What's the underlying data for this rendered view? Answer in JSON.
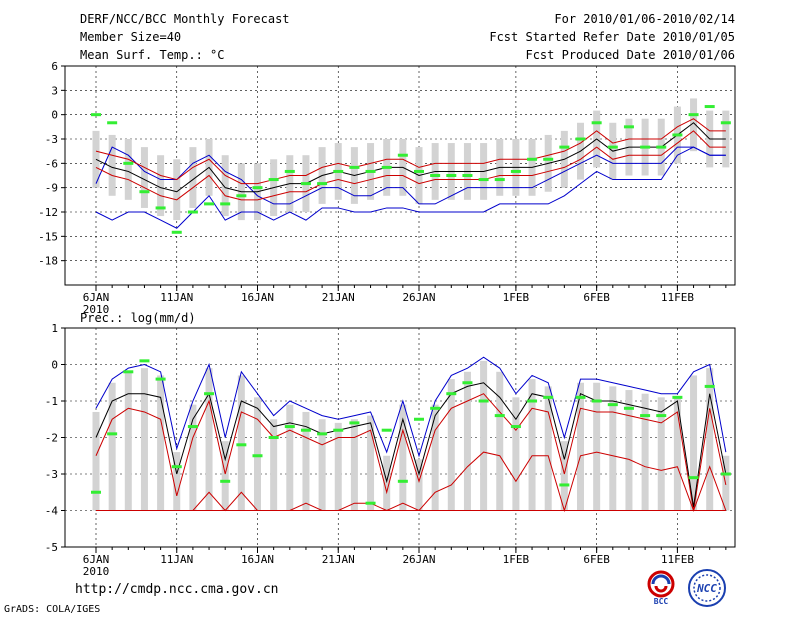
{
  "header": {
    "title": "DERF/NCC/BCC Monthly Forecast",
    "member_size": "Member Size=40",
    "variable": "Mean Surf. Temp.: °C",
    "period": "For 2010/01/06-2010/02/14",
    "refer_date": "Fcst Started Refer Date 2010/01/05",
    "produced_date": "Fcst Produced Date 2010/01/06"
  },
  "footer": {
    "url": "http://cmdp.ncc.cma.gov.cn",
    "credit": "GrADS: COLA/IGES",
    "logo_bcc": "BCC",
    "logo_ncc": "NCC"
  },
  "colors": {
    "median": "#000000",
    "quartile": "#cc0000",
    "extreme": "#0000cc",
    "box": "#d3d3d3",
    "obs_marker": "#33ee33"
  },
  "chart_data": [
    {
      "type": "box",
      "title": "",
      "ylabel": "Mean Surf. Temp.: °C",
      "ylim": [
        -21,
        6
      ],
      "yticks": [
        6,
        3,
        0,
        -3,
        -6,
        -9,
        -12,
        -15,
        -18
      ],
      "x_day_index_range": [
        0,
        39
      ],
      "xticks": [
        {
          "day": 0,
          "label": "6JAN",
          "sublabel": "2010"
        },
        {
          "day": 5,
          "label": "11JAN"
        },
        {
          "day": 10,
          "label": "16JAN"
        },
        {
          "day": 15,
          "label": "21JAN"
        },
        {
          "day": 20,
          "label": "26JAN"
        },
        {
          "day": 26,
          "label": "1FEB"
        },
        {
          "day": 31,
          "label": "6FEB"
        },
        {
          "day": 36,
          "label": "11FEB"
        }
      ],
      "series": [
        {
          "name": "max",
          "values": [
            -8.5,
            -4,
            -5,
            -7,
            -8,
            -8,
            -6,
            -5,
            -7,
            -8,
            -10,
            -11,
            -11,
            -10,
            -9,
            -9,
            -10,
            -10,
            -9,
            -9,
            -11,
            -11,
            -10,
            -9,
            -9,
            -9,
            -9,
            -9,
            -8,
            -7,
            -6,
            -5,
            -6,
            -6,
            -6,
            -6,
            -4,
            -4,
            -5,
            -5
          ]
        },
        {
          "name": "q75",
          "values": [
            -4.5,
            -5,
            -5.5,
            -6.5,
            -7.5,
            -8,
            -6.5,
            -5.5,
            -7.5,
            -8.5,
            -8.5,
            -8,
            -7.5,
            -7.5,
            -6.5,
            -6,
            -6.5,
            -6,
            -5.5,
            -5.5,
            -6.5,
            -6,
            -6,
            -6,
            -6,
            -5.5,
            -5.5,
            -5.5,
            -5,
            -4.5,
            -3.5,
            -2,
            -3.5,
            -3,
            -3,
            -3,
            -1.5,
            -0.5,
            -2,
            -2
          ]
        },
        {
          "name": "median",
          "values": [
            -5.5,
            -6.5,
            -7,
            -8,
            -9,
            -9.5,
            -8,
            -6.5,
            -9,
            -9.5,
            -9.5,
            -9,
            -8.5,
            -8.5,
            -7.5,
            -7,
            -7.5,
            -7,
            -6.5,
            -6.5,
            -7.5,
            -7,
            -7,
            -7,
            -7,
            -6.5,
            -6.5,
            -6.5,
            -6,
            -5.5,
            -4.5,
            -3,
            -4.5,
            -4,
            -4,
            -4,
            -2.5,
            -1,
            -3,
            -3
          ]
        },
        {
          "name": "q25",
          "values": [
            -6.5,
            -7.5,
            -8,
            -9,
            -10,
            -10.5,
            -9,
            -7.5,
            -10,
            -10.5,
            -10.5,
            -10,
            -9.5,
            -9.5,
            -8.5,
            -8,
            -8.5,
            -8,
            -7.5,
            -7.5,
            -8.5,
            -8,
            -8,
            -8,
            -8,
            -7.5,
            -7.5,
            -7.5,
            -7,
            -6.5,
            -5.5,
            -4,
            -5.5,
            -5,
            -5,
            -5,
            -3.5,
            -2,
            -4,
            -4
          ]
        },
        {
          "name": "min",
          "values": [
            -12,
            -13,
            -12,
            -12,
            -13,
            -14,
            -12,
            -10,
            -13,
            -12,
            -12,
            -13,
            -12,
            -13,
            -11.5,
            -11.5,
            -12,
            -12,
            -11.5,
            -11.5,
            -12,
            -12,
            -12,
            -12,
            -12,
            -11,
            -11,
            -11,
            -11,
            -10,
            -8.5,
            -7,
            -8,
            -8,
            -8,
            -8,
            -5,
            -4,
            -5,
            -5
          ]
        },
        {
          "name": "observed",
          "values": [
            0,
            -1,
            -6,
            -9.5,
            -11.5,
            -14.5,
            -12,
            -11,
            -11,
            -10,
            -9,
            -8,
            -7,
            -8.5,
            -8.5,
            -7,
            -6.5,
            -7,
            -6.5,
            -5,
            -7,
            -7.5,
            -7.5,
            -7.5,
            -8,
            -8,
            -7,
            -5.5,
            -5.5,
            -4,
            -3,
            -1,
            -4,
            -1.5,
            -4,
            -4,
            -2.5,
            0,
            1,
            -1
          ]
        }
      ]
    },
    {
      "type": "box",
      "title": "Prec.: log(mm/d)",
      "ylabel": "log(mm/d)",
      "ylim": [
        -5,
        1
      ],
      "yticks": [
        1,
        0,
        -1,
        -2,
        -3,
        -4,
        -5
      ],
      "xticks": [
        {
          "day": 0,
          "label": "6JAN",
          "sublabel": "2010"
        },
        {
          "day": 5,
          "label": "11JAN"
        },
        {
          "day": 10,
          "label": "16JAN"
        },
        {
          "day": 15,
          "label": "21JAN"
        },
        {
          "day": 20,
          "label": "26JAN"
        },
        {
          "day": 26,
          "label": "1FEB"
        },
        {
          "day": 31,
          "label": "6FEB"
        },
        {
          "day": 36,
          "label": "11FEB"
        }
      ],
      "series": [
        {
          "name": "max",
          "values": [
            -1.2,
            -0.4,
            -0.1,
            0,
            -0.2,
            -2.3,
            -1,
            0,
            -2,
            -0.2,
            -0.8,
            -1.4,
            -1,
            -1.2,
            -1.4,
            -1.5,
            -1.4,
            -1.3,
            -2.4,
            -1,
            -2.5,
            -1,
            -0.3,
            -0.1,
            0.2,
            -0.1,
            -0.8,
            -0.3,
            -0.5,
            -2,
            -0.4,
            -0.4,
            -0.5,
            -0.6,
            -0.7,
            -0.8,
            -0.8,
            -0.2,
            0,
            -2.4
          ]
        },
        {
          "name": "median",
          "values": [
            -2,
            -1,
            -0.8,
            -0.8,
            -0.9,
            -3,
            -1.5,
            -0.8,
            -2.6,
            -1,
            -1.2,
            -1.7,
            -1.6,
            -1.7,
            -1.9,
            -1.8,
            -1.7,
            -1.6,
            -3.2,
            -1.5,
            -3,
            -1.4,
            -0.8,
            -0.6,
            -0.5,
            -0.9,
            -1.5,
            -0.8,
            -0.9,
            -2.6,
            -0.8,
            -1,
            -1,
            -1.1,
            -1.2,
            -1.3,
            -1,
            -3.9,
            -0.8,
            -3
          ]
        },
        {
          "name": "q25",
          "values": [
            -2.5,
            -1.5,
            -1.2,
            -1.3,
            -1.5,
            -3.6,
            -2,
            -1,
            -3,
            -1.3,
            -1.5,
            -2,
            -1.8,
            -2,
            -2.2,
            -2,
            -2,
            -1.8,
            -3.5,
            -1.8,
            -3.2,
            -1.8,
            -1.2,
            -1,
            -0.8,
            -1.3,
            -1.8,
            -1.2,
            -1.3,
            -3,
            -1.2,
            -1.3,
            -1.3,
            -1.4,
            -1.5,
            -1.6,
            -1.3,
            -4,
            -1.2,
            -3.3
          ]
        },
        {
          "name": "q10",
          "values": [
            -4,
            -4,
            -4,
            -4,
            -4,
            -4,
            -4,
            -3.5,
            -4,
            -3.5,
            -4,
            -4,
            -4,
            -3.8,
            -4,
            -4,
            -3.8,
            -3.8,
            -4,
            -3.8,
            -4,
            -3.5,
            -3.3,
            -2.8,
            -2.4,
            -2.5,
            -3.2,
            -2.5,
            -2.5,
            -4,
            -2.5,
            -2.4,
            -2.5,
            -2.6,
            -2.8,
            -2.9,
            -2.8,
            -4,
            -2.8,
            -4
          ]
        },
        {
          "name": "min",
          "values": [
            -4,
            -4,
            -4,
            -4,
            -4,
            -4,
            -4,
            -4,
            -4,
            -4,
            -4,
            -4,
            -4,
            -4,
            -4,
            -4,
            -4,
            -4,
            -4,
            -4,
            -4,
            -4,
            -4,
            -4,
            -4,
            -4,
            -4,
            -4,
            -4,
            -4,
            -4,
            -4,
            -4,
            -4,
            -4,
            -4,
            -4,
            -4,
            -4,
            -4
          ]
        },
        {
          "name": "observed",
          "values": [
            -3.5,
            -1.9,
            -0.2,
            0.1,
            -0.4,
            -2.8,
            -1.7,
            -0.8,
            -3.2,
            -2.2,
            -2.5,
            -2,
            -1.7,
            -1.8,
            -1.9,
            -1.8,
            -1.6,
            -3.8,
            -1.8,
            -3.2,
            -1.5,
            -1.2,
            -0.8,
            -0.5,
            -1,
            -1.4,
            -1.7,
            -1,
            -0.9,
            -3.3,
            -0.9,
            -1,
            -1.1,
            -1.2,
            -1.4,
            -1.4,
            -0.9,
            -3.1,
            -0.6,
            -3
          ]
        }
      ]
    }
  ]
}
